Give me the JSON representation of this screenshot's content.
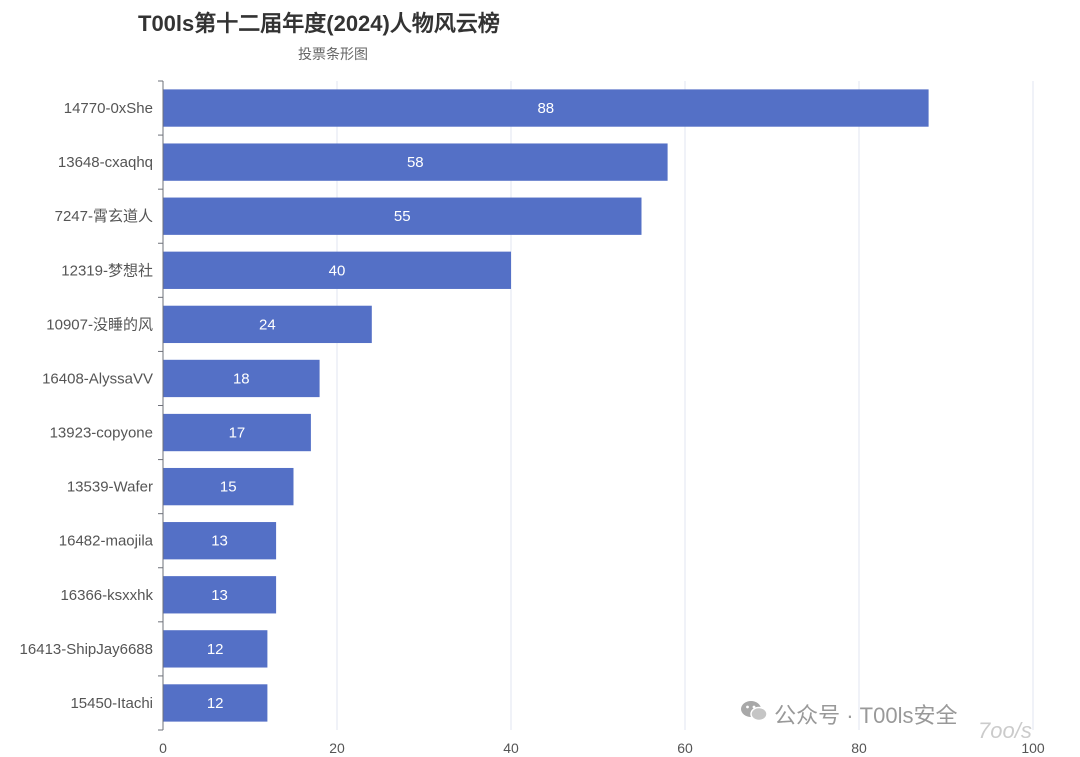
{
  "chart_data": {
    "type": "bar",
    "orientation": "horizontal",
    "title": "T00ls第十二届年度(2024)人物风云榜",
    "subtitle": "投票条形图",
    "categories": [
      "14770-0xShe",
      "13648-cxaqhq",
      "7247-霄玄道人",
      "12319-梦想社",
      "10907-没睡的风",
      "16408-AlyssaVV",
      "13923-copyone",
      "13539-Wafer",
      "16482-maojila",
      "16366-ksxxhk",
      "16413-ShipJay6688",
      "15450-Itachi"
    ],
    "values": [
      88,
      58,
      55,
      40,
      24,
      18,
      17,
      15,
      13,
      13,
      12,
      12
    ],
    "xlim": [
      0,
      100
    ],
    "xticks": [
      0,
      20,
      40,
      60,
      80,
      100
    ],
    "grid": true,
    "data_labels": "inside",
    "colors": {
      "bar": "#5470c6",
      "grid": "#e0e6f1",
      "axis": "#6e7079"
    }
  },
  "watermark": {
    "text": "公众号 · T00ls安全",
    "icon": "wechat-icon",
    "logo": "7oo/s"
  }
}
